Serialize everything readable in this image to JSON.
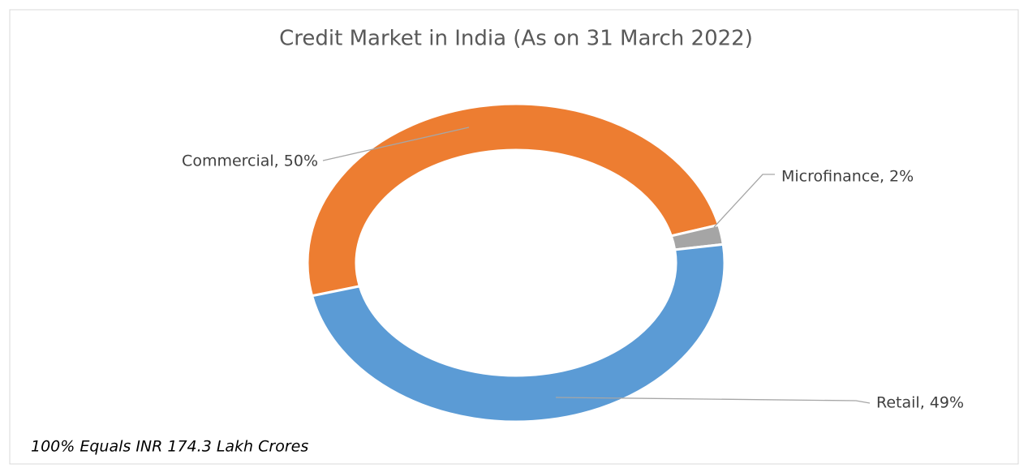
{
  "chart_data": {
    "type": "doughnut",
    "title": "Credit Market in India (As on 31 March 2022)",
    "series": [
      {
        "name": "Commercial",
        "color": "#ed7d31",
        "values": [
          50
        ],
        "value_labels": [
          "Commercial, 50%"
        ]
      },
      {
        "name": "Microfinance",
        "color": "#a5a5a5",
        "values": [
          2
        ],
        "value_labels": [
          "Microfinance, 2%"
        ]
      },
      {
        "name": "Retail",
        "color": "#5b9bd5",
        "values": [
          49
        ],
        "value_labels": [
          "Retail, 49%"
        ]
      }
    ],
    "annotation": "100% Equals INR 174.3 Lakh Crores"
  }
}
